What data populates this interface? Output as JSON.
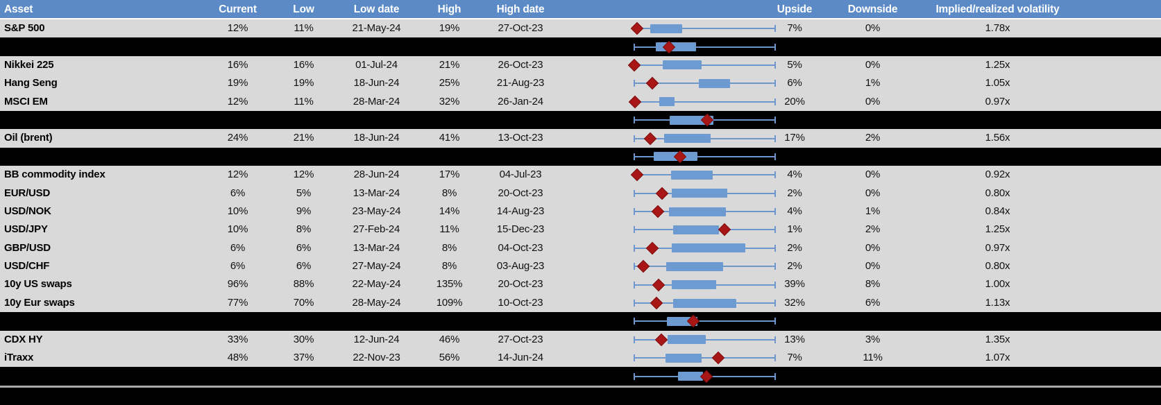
{
  "header": {
    "columns": [
      "Asset",
      "Current",
      "Low",
      "Low date",
      "High",
      "High date",
      "Upside",
      "Downside",
      "Implied/realized volatility"
    ]
  },
  "colors": {
    "header_bg": "#5B8AC6",
    "row_bg": "#D9D9D9",
    "separator_bg": "#000000",
    "box_fill": "#6D9BD1",
    "whisker": "#6C96CC",
    "diamond": "#A81616",
    "bottom_line": "#ABABAB",
    "header_text": "#FFFFFF",
    "cell_text": "#111111"
  },
  "chart_data": {
    "type": "table",
    "subtype": "row-boxplots",
    "title": "",
    "columns": [
      "Asset",
      "Current",
      "Low",
      "Low date",
      "High",
      "High date",
      "Upside",
      "Downside",
      "Implied/realized volatility"
    ],
    "plot_track": {
      "note_box_start_end_diamond": "percent position across whisker track (whisker caps at 0 and 100)"
    },
    "rows": [
      {
        "type": "data",
        "asset": "S&P 500",
        "current": "12%",
        "low": "11%",
        "low_date": "21-May-24",
        "high": "19%",
        "high_date": "27-Oct-23",
        "upside": "7%",
        "downside": "0%",
        "implied_realized": "1.78x",
        "plot": {
          "box_start": 11.7,
          "box_end": 34,
          "diamond": 2.4
        }
      },
      {
        "type": "separator",
        "plot": {
          "box_start": 15.6,
          "box_end": 44,
          "diamond": 25
        }
      },
      {
        "type": "data",
        "asset": "Nikkei 225",
        "current": "16%",
        "low": "16%",
        "low_date": "01-Jul-24",
        "high": "21%",
        "high_date": "26-Oct-23",
        "upside": "5%",
        "downside": "0%",
        "implied_realized": "1.25x",
        "plot": {
          "box_start": 20.5,
          "box_end": 47.8,
          "diamond": 0.5
        }
      },
      {
        "type": "data",
        "asset": "Hang Seng",
        "current": "19%",
        "low": "19%",
        "low_date": "18-Jun-24",
        "high": "25%",
        "high_date": "21-Aug-23",
        "upside": "6%",
        "downside": "1%",
        "implied_realized": "1.05x",
        "plot": {
          "box_start": 46,
          "box_end": 68,
          "diamond": 13
        }
      },
      {
        "type": "data",
        "asset": "MSCI EM",
        "current": "12%",
        "low": "11%",
        "low_date": "28-Mar-24",
        "high": "32%",
        "high_date": "26-Jan-24",
        "upside": "20%",
        "downside": "0%",
        "implied_realized": "0.97x",
        "plot": {
          "box_start": 18,
          "box_end": 29,
          "diamond": 1
        }
      },
      {
        "type": "separator",
        "plot": {
          "box_start": 25.4,
          "box_end": 56.1,
          "diamond": 51.7
        }
      },
      {
        "type": "data",
        "asset": "Oil (brent)",
        "current": "24%",
        "low": "21%",
        "low_date": "18-Jun-24",
        "high": "41%",
        "high_date": "13-Oct-23",
        "upside": "17%",
        "downside": "2%",
        "implied_realized": "1.56x",
        "plot": {
          "box_start": 21.5,
          "box_end": 54,
          "diamond": 11.7
        }
      },
      {
        "type": "separator",
        "plot": {
          "box_start": 14,
          "box_end": 45,
          "diamond": 32.7
        }
      },
      {
        "type": "data",
        "asset": "BB commodity index",
        "current": "12%",
        "low": "12%",
        "low_date": "28-Jun-24",
        "high": "17%",
        "high_date": "04-Jul-23",
        "upside": "4%",
        "downside": "0%",
        "implied_realized": "0.92x",
        "plot": {
          "box_start": 26.3,
          "box_end": 55.6,
          "diamond": 2.4
        }
      },
      {
        "type": "data",
        "asset": "EUR/USD",
        "current": "6%",
        "low": "5%",
        "low_date": "13-Mar-24",
        "high": "8%",
        "high_date": "20-Oct-23",
        "upside": "2%",
        "downside": "0%",
        "implied_realized": "0.80x",
        "plot": {
          "box_start": 27,
          "box_end": 66,
          "diamond": 20
        }
      },
      {
        "type": "data",
        "asset": "USD/NOK",
        "current": "10%",
        "low": "9%",
        "low_date": "23-May-24",
        "high": "14%",
        "high_date": "14-Aug-23",
        "upside": "4%",
        "downside": "1%",
        "implied_realized": "0.84x",
        "plot": {
          "box_start": 25,
          "box_end": 65,
          "diamond": 17
        }
      },
      {
        "type": "data",
        "asset": "USD/JPY",
        "current": "10%",
        "low": "8%",
        "low_date": "27-Feb-24",
        "high": "11%",
        "high_date": "15-Dec-23",
        "upside": "1%",
        "downside": "2%",
        "implied_realized": "1.25x",
        "plot": {
          "box_start": 28,
          "box_end": 60,
          "diamond": 64
        }
      },
      {
        "type": "data",
        "asset": "GBP/USD",
        "current": "6%",
        "low": "6%",
        "low_date": "13-Mar-24",
        "high": "8%",
        "high_date": "04-Oct-23",
        "upside": "2%",
        "downside": "0%",
        "implied_realized": "0.97x",
        "plot": {
          "box_start": 26.8,
          "box_end": 78.5,
          "diamond": 13
        }
      },
      {
        "type": "data",
        "asset": "USD/CHF",
        "current": "6%",
        "low": "6%",
        "low_date": "27-May-24",
        "high": "8%",
        "high_date": "03-Aug-23",
        "upside": "2%",
        "downside": "0%",
        "implied_realized": "0.80x",
        "plot": {
          "box_start": 23,
          "box_end": 63,
          "diamond": 7
        }
      },
      {
        "type": "data",
        "asset": "10y US swaps",
        "current": "96%",
        "low": "88%",
        "low_date": "22-May-24",
        "high": "135%",
        "high_date": "20-Oct-23",
        "upside": "39%",
        "downside": "8%",
        "implied_realized": "1.00x",
        "plot": {
          "box_start": 27,
          "box_end": 58,
          "diamond": 17.5
        }
      },
      {
        "type": "data",
        "asset": "10y Eur swaps",
        "current": "77%",
        "low": "70%",
        "low_date": "28-May-24",
        "high": "109%",
        "high_date": "10-Oct-23",
        "upside": "32%",
        "downside": "6%",
        "implied_realized": "1.13x",
        "plot": {
          "box_start": 28,
          "box_end": 72,
          "diamond": 16
        }
      },
      {
        "type": "separator",
        "plot": {
          "box_start": 23.4,
          "box_end": 44.9,
          "diamond": 42
        }
      },
      {
        "type": "data",
        "asset": "CDX HY",
        "current": "33%",
        "low": "30%",
        "low_date": "12-Jun-24",
        "high": "46%",
        "high_date": "27-Oct-23",
        "upside": "13%",
        "downside": "3%",
        "implied_realized": "1.35x",
        "plot": {
          "box_start": 24,
          "box_end": 50.7,
          "diamond": 19.5
        }
      },
      {
        "type": "data",
        "asset": "iTraxx",
        "current": "48%",
        "low": "37%",
        "low_date": "22-Nov-23",
        "high": "56%",
        "high_date": "14-Jun-24",
        "upside": "7%",
        "downside": "11%",
        "implied_realized": "1.07x",
        "plot": {
          "box_start": 22.4,
          "box_end": 47.8,
          "diamond": 59.5
        }
      },
      {
        "type": "separator",
        "plot": {
          "box_start": 31.2,
          "box_end": 48.8,
          "diamond": 51.2
        }
      }
    ]
  }
}
